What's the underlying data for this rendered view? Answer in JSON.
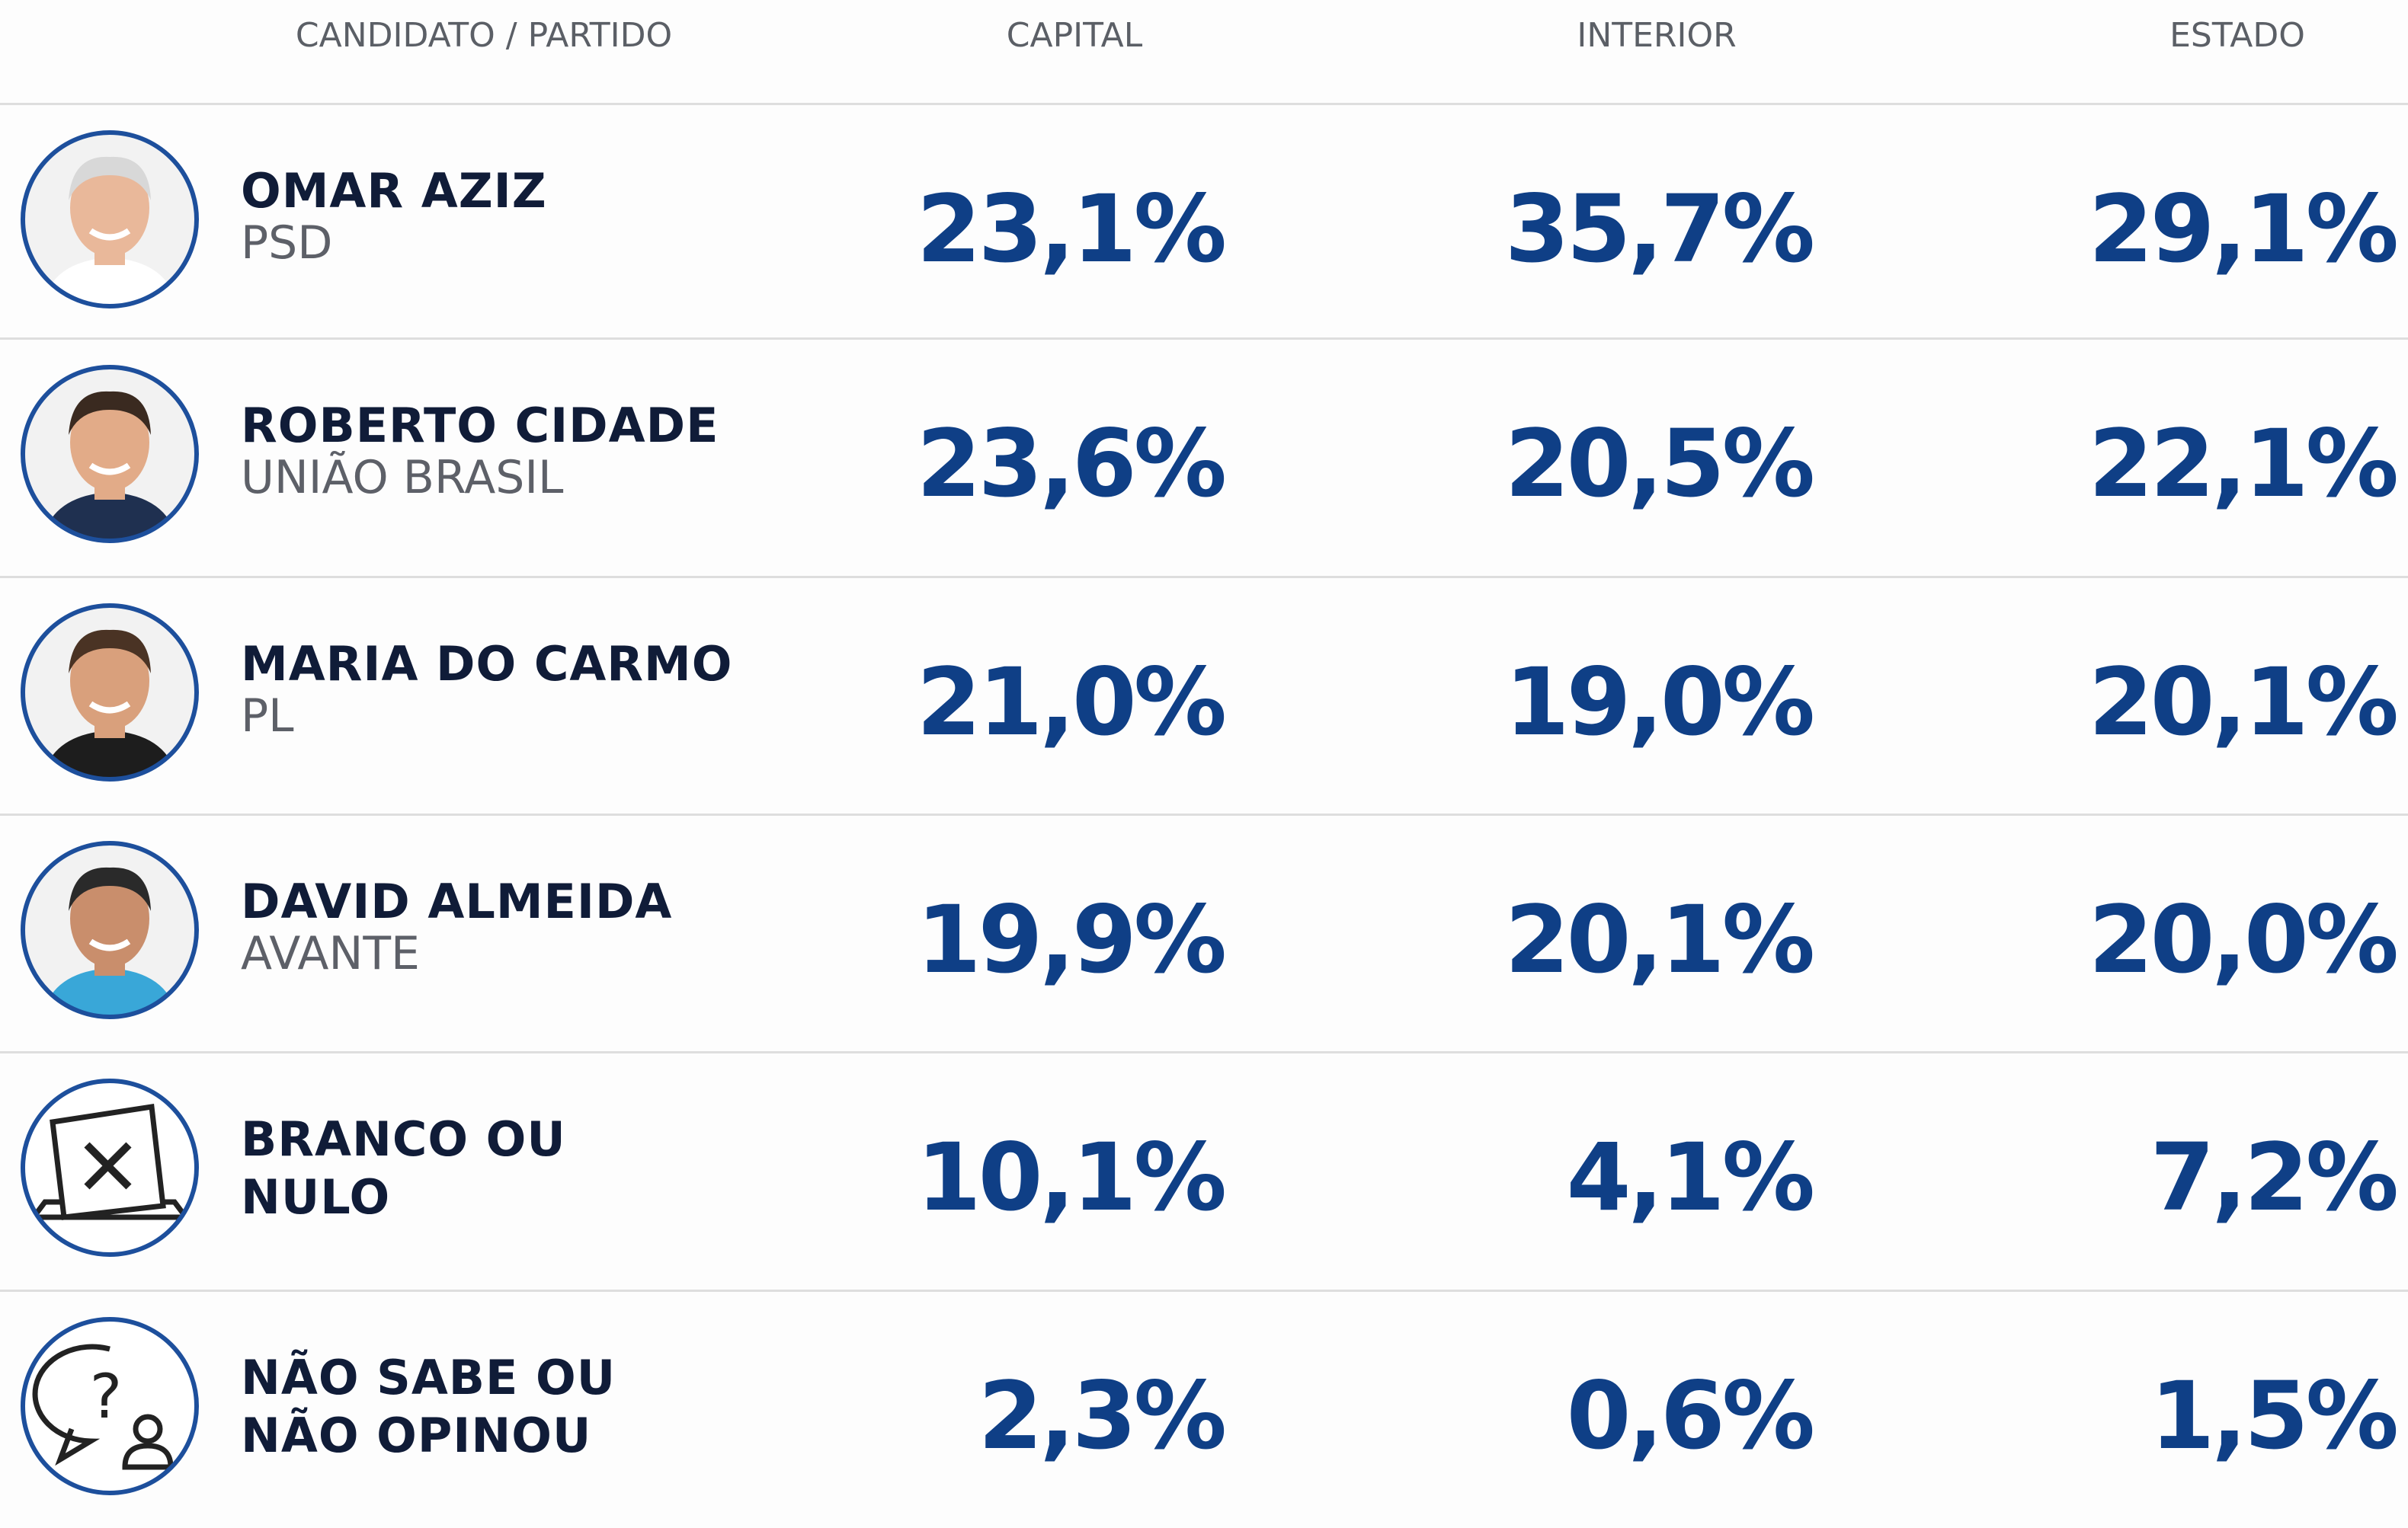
{
  "header": {
    "candidate": "CANDIDATO / PARTIDO",
    "capital": "CAPITAL",
    "interior": "INTERIOR",
    "state": "ESTADO"
  },
  "rows": [
    {
      "name": [
        "OMAR AZIZ"
      ],
      "party": "PSD",
      "capital": "23,1%",
      "interior": "35,7%",
      "state": "29,1%"
    },
    {
      "name": [
        "ROBERTO CIDADE"
      ],
      "party": "UNIÃO BRASIL",
      "capital": "23,6%",
      "interior": "20,5%",
      "state": "22,1%"
    },
    {
      "name": [
        "MARIA DO CARMO"
      ],
      "party": "PL",
      "capital": "21,0%",
      "interior": "19,0%",
      "state": "20,1%"
    },
    {
      "name": [
        "DAVID ALMEIDA"
      ],
      "party": "AVANTE",
      "capital": "19,9%",
      "interior": "20,1%",
      "state": "20,0%"
    },
    {
      "name": [
        "BRANCO OU",
        "NULO"
      ],
      "capital": "10,1%",
      "interior": "4,1%",
      "state": "7,2%"
    },
    {
      "name": [
        "NÃO SABE OU",
        "NÃO OPINOU"
      ],
      "capital": "2,3%",
      "interior": "0,6%",
      "state": "1,5%"
    }
  ]
}
